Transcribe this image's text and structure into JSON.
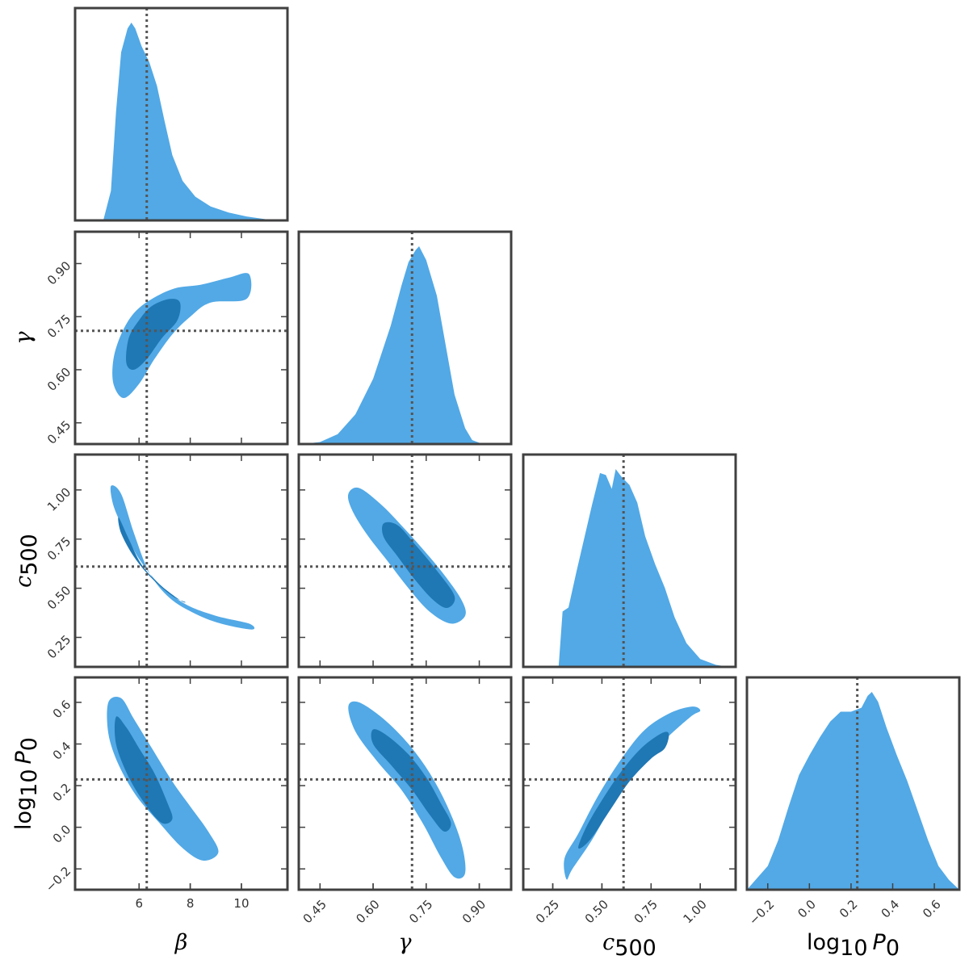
{
  "chart_data": {
    "type": "corner",
    "parameters": [
      {
        "key": "beta",
        "label": "β",
        "range": [
          3.5,
          11.8
        ],
        "ticks": [
          6,
          8,
          10
        ],
        "tick_labels": [
          "6",
          "8",
          "10"
        ],
        "truth": 6.3
      },
      {
        "key": "gamma",
        "label": "γ",
        "range": [
          0.39,
          0.99
        ],
        "ticks": [
          0.45,
          0.6,
          0.75,
          0.9
        ],
        "tick_labels": [
          "0.45",
          "0.60",
          "0.75",
          "0.90"
        ],
        "truth": 0.71
      },
      {
        "key": "c500",
        "label": "c",
        "label_sub": "500",
        "range": [
          0.1,
          1.18
        ],
        "ticks": [
          0.25,
          0.5,
          0.75,
          1.0
        ],
        "tick_labels": [
          "0.25",
          "0.50",
          "0.75",
          "1.00"
        ],
        "truth": 0.61
      },
      {
        "key": "log10_P0",
        "label": "log",
        "label_sub": "10",
        "label_after": "P",
        "label_after_sub": "0",
        "range": [
          -0.3,
          0.72
        ],
        "ticks": [
          -0.2,
          0.0,
          0.2,
          0.4,
          0.6
        ],
        "tick_labels": [
          "−0.2",
          "0.0",
          "0.2",
          "0.4",
          "0.6"
        ],
        "truth": 0.23
      }
    ],
    "marginals": [
      {
        "param": "beta",
        "points": [
          [
            4.6,
            0
          ],
          [
            4.9,
            0.15
          ],
          [
            5.1,
            0.55
          ],
          [
            5.3,
            0.85
          ],
          [
            5.55,
            0.97
          ],
          [
            5.7,
            1.0
          ],
          [
            5.85,
            0.97
          ],
          [
            6.1,
            0.88
          ],
          [
            6.4,
            0.8
          ],
          [
            6.7,
            0.68
          ],
          [
            7.0,
            0.5
          ],
          [
            7.3,
            0.33
          ],
          [
            7.7,
            0.2
          ],
          [
            8.2,
            0.12
          ],
          [
            8.8,
            0.07
          ],
          [
            9.5,
            0.04
          ],
          [
            10.2,
            0.02
          ],
          [
            11.0,
            0.005
          ],
          [
            11.5,
            0
          ]
        ]
      },
      {
        "param": "gamma",
        "points": [
          [
            0.4,
            0
          ],
          [
            0.45,
            0.01
          ],
          [
            0.5,
            0.05
          ],
          [
            0.55,
            0.15
          ],
          [
            0.6,
            0.33
          ],
          [
            0.65,
            0.6
          ],
          [
            0.68,
            0.8
          ],
          [
            0.7,
            0.92
          ],
          [
            0.72,
            0.98
          ],
          [
            0.73,
            1.0
          ],
          [
            0.75,
            0.93
          ],
          [
            0.78,
            0.75
          ],
          [
            0.81,
            0.45
          ],
          [
            0.83,
            0.25
          ],
          [
            0.86,
            0.08
          ],
          [
            0.88,
            0.02
          ],
          [
            0.91,
            0
          ]
        ]
      },
      {
        "param": "c500",
        "points": [
          [
            0.28,
            0
          ],
          [
            0.3,
            0.28
          ],
          [
            0.33,
            0.3
          ],
          [
            0.37,
            0.48
          ],
          [
            0.41,
            0.65
          ],
          [
            0.45,
            0.82
          ],
          [
            0.49,
            0.98
          ],
          [
            0.52,
            0.97
          ],
          [
            0.55,
            0.9
          ],
          [
            0.57,
            1.0
          ],
          [
            0.6,
            0.96
          ],
          [
            0.64,
            0.92
          ],
          [
            0.68,
            0.83
          ],
          [
            0.72,
            0.66
          ],
          [
            0.77,
            0.52
          ],
          [
            0.82,
            0.4
          ],
          [
            0.87,
            0.25
          ],
          [
            0.93,
            0.12
          ],
          [
            1.0,
            0.04
          ],
          [
            1.08,
            0.01
          ],
          [
            1.15,
            0
          ]
        ]
      },
      {
        "param": "log10_P0",
        "points": [
          [
            -0.3,
            0
          ],
          [
            -0.25,
            0.06
          ],
          [
            -0.2,
            0.12
          ],
          [
            -0.15,
            0.25
          ],
          [
            -0.1,
            0.42
          ],
          [
            -0.05,
            0.58
          ],
          [
            0.0,
            0.68
          ],
          [
            0.05,
            0.77
          ],
          [
            0.1,
            0.85
          ],
          [
            0.15,
            0.9
          ],
          [
            0.2,
            0.9
          ],
          [
            0.25,
            0.92
          ],
          [
            0.28,
            0.98
          ],
          [
            0.3,
            1.0
          ],
          [
            0.33,
            0.95
          ],
          [
            0.37,
            0.82
          ],
          [
            0.42,
            0.68
          ],
          [
            0.47,
            0.55
          ],
          [
            0.52,
            0.4
          ],
          [
            0.57,
            0.25
          ],
          [
            0.62,
            0.12
          ],
          [
            0.67,
            0.05
          ],
          [
            0.72,
            0
          ]
        ]
      }
    ],
    "joint": [
      {
        "x": "beta",
        "y": "gamma",
        "outer": [
          [
            5.0,
            0.56
          ],
          [
            5.4,
            0.52
          ],
          [
            6.0,
            0.56
          ],
          [
            6.6,
            0.63
          ],
          [
            7.3,
            0.7
          ],
          [
            8.0,
            0.75
          ],
          [
            8.8,
            0.79
          ],
          [
            10.2,
            0.8
          ],
          [
            10.3,
            0.87
          ],
          [
            9.5,
            0.86
          ],
          [
            8.4,
            0.84
          ],
          [
            7.4,
            0.83
          ],
          [
            6.5,
            0.8
          ],
          [
            5.8,
            0.76
          ],
          [
            5.3,
            0.7
          ],
          [
            5.0,
            0.63
          ]
        ],
        "inner": [
          [
            5.5,
            0.62
          ],
          [
            5.8,
            0.6
          ],
          [
            6.3,
            0.63
          ],
          [
            6.9,
            0.69
          ],
          [
            7.5,
            0.74
          ],
          [
            7.6,
            0.79
          ],
          [
            7.2,
            0.8
          ],
          [
            6.5,
            0.78
          ],
          [
            6.0,
            0.74
          ],
          [
            5.6,
            0.69
          ]
        ]
      },
      {
        "x": "beta",
        "y": "c500",
        "outer": [
          [
            4.9,
            1.02
          ],
          [
            5.3,
            0.98
          ],
          [
            5.8,
            0.78
          ],
          [
            6.4,
            0.58
          ],
          [
            7.2,
            0.45
          ],
          [
            8.2,
            0.37
          ],
          [
            9.2,
            0.32
          ],
          [
            10.4,
            0.29
          ],
          [
            10.3,
            0.32
          ],
          [
            9.0,
            0.36
          ],
          [
            7.8,
            0.42
          ],
          [
            6.8,
            0.52
          ],
          [
            6.0,
            0.65
          ],
          [
            5.4,
            0.8
          ],
          [
            5.0,
            0.92
          ]
        ],
        "inner": [
          [
            5.2,
            0.86
          ],
          [
            5.6,
            0.75
          ],
          [
            6.1,
            0.62
          ],
          [
            6.8,
            0.52
          ],
          [
            7.6,
            0.44
          ],
          [
            7.8,
            0.43
          ],
          [
            7.3,
            0.46
          ],
          [
            6.5,
            0.55
          ],
          [
            5.8,
            0.66
          ],
          [
            5.3,
            0.78
          ]
        ]
      },
      {
        "x": "gamma",
        "y": "c500",
        "outer": [
          [
            0.53,
            0.98
          ],
          [
            0.56,
            1.01
          ],
          [
            0.62,
            0.93
          ],
          [
            0.68,
            0.82
          ],
          [
            0.74,
            0.7
          ],
          [
            0.8,
            0.57
          ],
          [
            0.85,
            0.44
          ],
          [
            0.86,
            0.36
          ],
          [
            0.82,
            0.32
          ],
          [
            0.76,
            0.38
          ],
          [
            0.7,
            0.5
          ],
          [
            0.64,
            0.64
          ],
          [
            0.58,
            0.78
          ],
          [
            0.54,
            0.9
          ]
        ],
        "inner": [
          [
            0.63,
            0.83
          ],
          [
            0.67,
            0.82
          ],
          [
            0.72,
            0.72
          ],
          [
            0.78,
            0.59
          ],
          [
            0.83,
            0.46
          ],
          [
            0.81,
            0.4
          ],
          [
            0.77,
            0.44
          ],
          [
            0.72,
            0.54
          ],
          [
            0.67,
            0.66
          ],
          [
            0.63,
            0.76
          ]
        ]
      },
      {
        "x": "beta",
        "y": "log10_P0",
        "outer": [
          [
            4.8,
            0.6
          ],
          [
            5.3,
            0.62
          ],
          [
            5.8,
            0.52
          ],
          [
            6.5,
            0.38
          ],
          [
            7.3,
            0.22
          ],
          [
            8.0,
            0.1
          ],
          [
            8.7,
            -0.02
          ],
          [
            9.1,
            -0.12
          ],
          [
            8.5,
            -0.16
          ],
          [
            7.7,
            -0.1
          ],
          [
            6.8,
            0.02
          ],
          [
            5.9,
            0.15
          ],
          [
            5.2,
            0.3
          ],
          [
            4.8,
            0.45
          ]
        ],
        "inner": [
          [
            5.1,
            0.53
          ],
          [
            5.5,
            0.48
          ],
          [
            6.0,
            0.38
          ],
          [
            6.6,
            0.26
          ],
          [
            7.1,
            0.12
          ],
          [
            7.3,
            0.04
          ],
          [
            6.9,
            0.02
          ],
          [
            6.3,
            0.1
          ],
          [
            5.6,
            0.24
          ],
          [
            5.1,
            0.4
          ]
        ]
      },
      {
        "x": "gamma",
        "y": "log10_P0",
        "outer": [
          [
            0.53,
            0.58
          ],
          [
            0.56,
            0.6
          ],
          [
            0.63,
            0.52
          ],
          [
            0.7,
            0.4
          ],
          [
            0.76,
            0.26
          ],
          [
            0.81,
            0.1
          ],
          [
            0.85,
            -0.08
          ],
          [
            0.86,
            -0.22
          ],
          [
            0.83,
            -0.24
          ],
          [
            0.79,
            -0.14
          ],
          [
            0.74,
            0.02
          ],
          [
            0.68,
            0.18
          ],
          [
            0.61,
            0.32
          ],
          [
            0.55,
            0.46
          ]
        ],
        "inner": [
          [
            0.6,
            0.47
          ],
          [
            0.64,
            0.44
          ],
          [
            0.7,
            0.35
          ],
          [
            0.75,
            0.24
          ],
          [
            0.79,
            0.12
          ],
          [
            0.82,
            0.02
          ],
          [
            0.8,
            -0.02
          ],
          [
            0.76,
            0.06
          ],
          [
            0.71,
            0.18
          ],
          [
            0.65,
            0.3
          ],
          [
            0.6,
            0.4
          ]
        ]
      },
      {
        "x": "c500",
        "y": "log10_P0",
        "outer": [
          [
            0.32,
            -0.25
          ],
          [
            0.35,
            -0.2
          ],
          [
            0.45,
            -0.06
          ],
          [
            0.56,
            0.12
          ],
          [
            0.68,
            0.28
          ],
          [
            0.82,
            0.42
          ],
          [
            0.95,
            0.53
          ],
          [
            1.0,
            0.56
          ],
          [
            0.96,
            0.58
          ],
          [
            0.85,
            0.55
          ],
          [
            0.72,
            0.47
          ],
          [
            0.6,
            0.33
          ],
          [
            0.48,
            0.15
          ],
          [
            0.38,
            -0.03
          ],
          [
            0.31,
            -0.15
          ]
        ],
        "inner": [
          [
            0.38,
            -0.1
          ],
          [
            0.44,
            -0.06
          ],
          [
            0.54,
            0.08
          ],
          [
            0.64,
            0.22
          ],
          [
            0.75,
            0.33
          ],
          [
            0.82,
            0.38
          ],
          [
            0.84,
            0.45
          ],
          [
            0.8,
            0.45
          ],
          [
            0.7,
            0.38
          ],
          [
            0.6,
            0.27
          ],
          [
            0.5,
            0.13
          ],
          [
            0.42,
            0.0
          ]
        ]
      }
    ],
    "colors": {
      "outer": "#52a9e6",
      "inner": "#1f77b4",
      "frame": "#404040",
      "truth": "#555555"
    },
    "grid": false,
    "legend": "none"
  }
}
